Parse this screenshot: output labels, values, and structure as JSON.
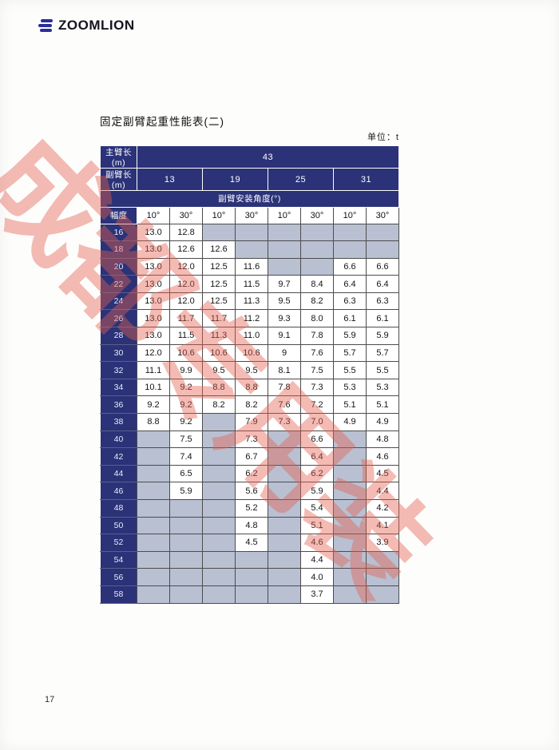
{
  "logo": {
    "text": "ZOOMLION"
  },
  "page": {
    "title": "固定副臂起重性能表(二)",
    "unit_label": "单位：t",
    "number": "17"
  },
  "table": {
    "main_boom_label": "主臂长(m)",
    "main_boom_value": "43",
    "jib_label": "副臂长(m)",
    "jib_lengths": [
      "13",
      "19",
      "25",
      "31"
    ],
    "angle_header": "副臂安装角度(°)",
    "radius_label": "幅度",
    "angle_cols": [
      "10°",
      "30°",
      "10°",
      "30°",
      "10°",
      "30°",
      "10°",
      "30°"
    ],
    "rows": [
      {
        "radius": "16",
        "values": [
          "13.0",
          "12.8",
          "",
          "",
          "",
          "",
          "",
          ""
        ]
      },
      {
        "radius": "18",
        "values": [
          "13.0",
          "12.6",
          "12.6",
          "",
          "",
          "",
          "",
          ""
        ]
      },
      {
        "radius": "20",
        "values": [
          "13.0",
          "12.0",
          "12.5",
          "11.6",
          "",
          "",
          "6.6",
          "6.6"
        ]
      },
      {
        "radius": "22",
        "values": [
          "13.0",
          "12.0",
          "12.5",
          "11.5",
          "9.7",
          "8.4",
          "6.4",
          "6.4"
        ]
      },
      {
        "radius": "24",
        "values": [
          "13.0",
          "12.0",
          "12.5",
          "11.3",
          "9.5",
          "8.2",
          "6.3",
          "6.3"
        ]
      },
      {
        "radius": "26",
        "values": [
          "13.0",
          "11.7",
          "11.7",
          "11.2",
          "9.3",
          "8.0",
          "6.1",
          "6.1"
        ]
      },
      {
        "radius": "28",
        "values": [
          "13.0",
          "11.5",
          "11.3",
          "11.0",
          "9.1",
          "7.8",
          "5.9",
          "5.9"
        ]
      },
      {
        "radius": "30",
        "values": [
          "12.0",
          "10.6",
          "10.6",
          "10.6",
          "9",
          "7.6",
          "5.7",
          "5.7"
        ]
      },
      {
        "radius": "32",
        "values": [
          "11.1",
          "9.9",
          "9.5",
          "9.5",
          "8.1",
          "7.5",
          "5.5",
          "5.5"
        ]
      },
      {
        "radius": "34",
        "values": [
          "10.1",
          "9.2",
          "8.8",
          "8.8",
          "7.8",
          "7.3",
          "5.3",
          "5.3"
        ]
      },
      {
        "radius": "36",
        "values": [
          "9.2",
          "9.2",
          "8.2",
          "8.2",
          "7.6",
          "7.2",
          "5.1",
          "5.1"
        ]
      },
      {
        "radius": "38",
        "values": [
          "8.8",
          "9.2",
          "",
          "7.9",
          "7.3",
          "7.0",
          "4.9",
          "4.9"
        ]
      },
      {
        "radius": "40",
        "values": [
          "",
          "7.5",
          "",
          "7.3",
          "",
          "6.6",
          "",
          "4.8"
        ]
      },
      {
        "radius": "42",
        "values": [
          "",
          "7.4",
          "",
          "6.7",
          "",
          "6.4",
          "",
          "4.6"
        ]
      },
      {
        "radius": "44",
        "values": [
          "",
          "6.5",
          "",
          "6.2",
          "",
          "6.2",
          "",
          "4.5"
        ]
      },
      {
        "radius": "46",
        "values": [
          "",
          "5.9",
          "",
          "5.6",
          "",
          "5.9",
          "",
          "4.4"
        ]
      },
      {
        "radius": "48",
        "values": [
          "",
          "",
          "",
          "5.2",
          "",
          "5.4",
          "",
          "4.2"
        ]
      },
      {
        "radius": "50",
        "values": [
          "",
          "",
          "",
          "4.8",
          "",
          "5.1",
          "",
          "4.1"
        ]
      },
      {
        "radius": "52",
        "values": [
          "",
          "",
          "",
          "4.5",
          "",
          "4.6",
          "",
          "3.9"
        ]
      },
      {
        "radius": "54",
        "values": [
          "",
          "",
          "",
          "",
          "",
          "4.4",
          "",
          ""
        ]
      },
      {
        "radius": "56",
        "values": [
          "",
          "",
          "",
          "",
          "",
          "4.0",
          "",
          ""
        ]
      },
      {
        "radius": "58",
        "values": [
          "",
          "",
          "",
          "",
          "",
          "3.7",
          "",
          ""
        ]
      }
    ]
  },
  "watermark": {
    "characters": [
      "成",
      "都",
      "专",
      "用",
      "装"
    ]
  },
  "colors": {
    "navy": "#2b3278",
    "empty_cell": "#b9c0d2",
    "watermark_red": "#e4604e",
    "logo_blue": "#2d2d9a"
  }
}
